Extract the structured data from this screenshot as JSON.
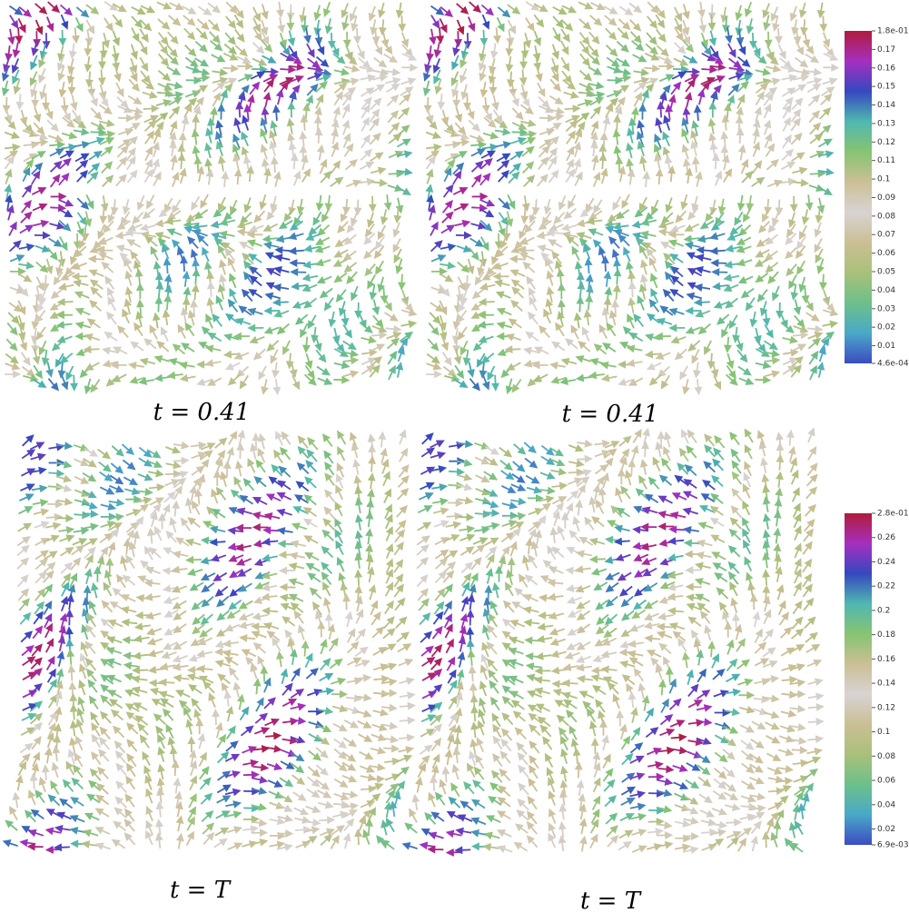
{
  "panels": [
    {
      "caption": "t = 0.41",
      "colorbar": 0
    },
    {
      "caption": "t = 0.41",
      "colorbar": 0
    },
    {
      "caption": "t = T",
      "colorbar": 1
    },
    {
      "caption": "t = T",
      "colorbar": 1
    }
  ],
  "colormap": [
    "#3b4cc0",
    "#4aa8c8",
    "#6cc08a",
    "#a9c07a",
    "#cbbf95",
    "#d8d3d3",
    "#cbbf95",
    "#86c472",
    "#4fb8b0",
    "#3548c0",
    "#a62fbf",
    "#b01c3c"
  ],
  "colorbars": [
    {
      "lim": [
        0.00046,
        0.18
      ],
      "ticks": [
        {
          "value": 0.18,
          "label": "1.8e-01"
        },
        0.17,
        0.16,
        0.15,
        0.14,
        0.13,
        0.12,
        0.11,
        0.1,
        0.09,
        0.08,
        0.07,
        0.06,
        0.05,
        0.04,
        0.03,
        0.02,
        0.01,
        {
          "value": 0.00046,
          "label": "4.6e-04"
        }
      ]
    },
    {
      "lim": [
        0.0069,
        0.28
      ],
      "ticks": [
        {
          "value": 0.28,
          "label": "2.8e-01"
        },
        0.26,
        0.24,
        0.22,
        0.2,
        0.18,
        0.16,
        0.14,
        0.12,
        0.1,
        0.08,
        0.06,
        0.04,
        0.02,
        {
          "value": 0.0069,
          "label": "6.9e-03"
        }
      ]
    }
  ]
}
